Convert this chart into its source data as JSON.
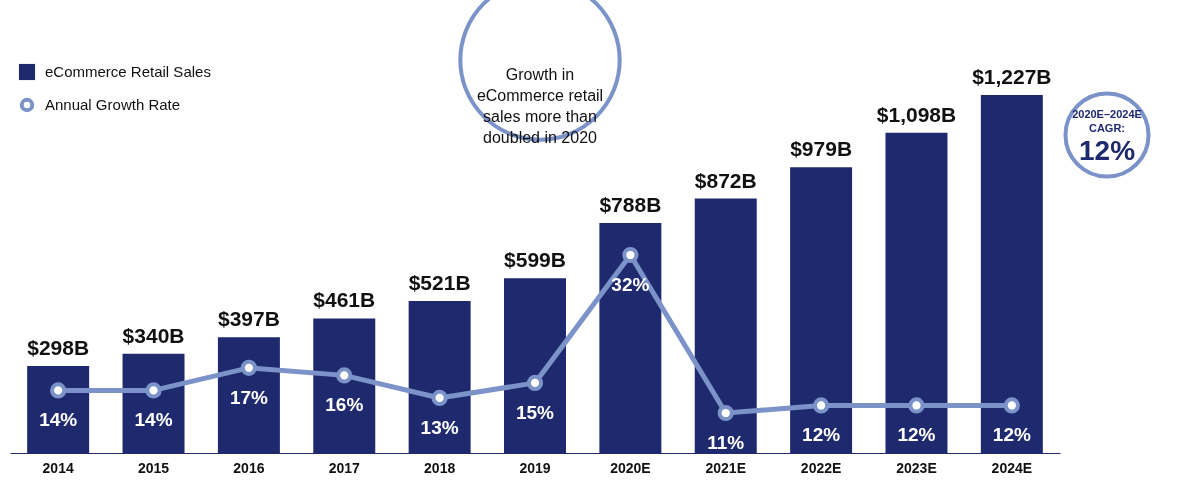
{
  "chart_data": {
    "type": "bar",
    "categories": [
      "2014",
      "2015",
      "2016",
      "2017",
      "2018",
      "2019",
      "2020E",
      "2021E",
      "2022E",
      "2023E",
      "2024E"
    ],
    "series": [
      {
        "name": "eCommerce Retail Sales",
        "type": "bar",
        "color": "#1f2a6e",
        "values": [
          298,
          340,
          397,
          461,
          521,
          599,
          788,
          872,
          979,
          1098,
          1227
        ],
        "value_labels": [
          "$298B",
          "$340B",
          "$397B",
          "$461B",
          "$521B",
          "$599B",
          "$788B",
          "$872B",
          "$979B",
          "$1,098B",
          "$1,227B"
        ]
      },
      {
        "name": "Annual Growth Rate",
        "type": "line",
        "axis": "y2",
        "color": "#7b93c8",
        "values": [
          14,
          14,
          17,
          16,
          13,
          15,
          32,
          11,
          12,
          12,
          12
        ],
        "value_labels": [
          "14%",
          "14%",
          "17%",
          "16%",
          "13%",
          "15%",
          "32%",
          "11%",
          "12%",
          "12%",
          "12%"
        ]
      }
    ],
    "tick_labels": "x",
    "grid": false,
    "marker": "circle",
    "legend": "top left",
    "annotations": [
      "Growth in eCommerce retail sales more than doubled in 2020",
      "2020E–2024E CAGR: 12%"
    ]
  }
}
